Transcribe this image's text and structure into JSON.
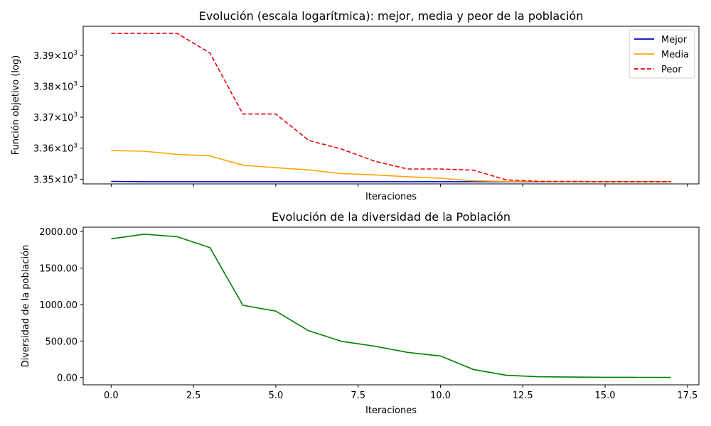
{
  "chart_data": [
    {
      "type": "line",
      "title": "Evolución (escala logarítmica): mejor, media y peor de la población",
      "xlabel": "Iteraciones",
      "ylabel": "Función objetivo (log)",
      "yscale": "log",
      "xlim": [
        -0.85,
        17.85
      ],
      "ylim": [
        3348.5,
        3399.5
      ],
      "grid": false,
      "legend_position": "top-right",
      "x_ticks": [
        0,
        2.5,
        5,
        7.5,
        10,
        12.5,
        15,
        17.5
      ],
      "y_ticks": [
        {
          "value": 3350,
          "mantissa": "3.35",
          "base": "10",
          "exp": "3"
        },
        {
          "value": 3360,
          "mantissa": "3.36",
          "base": "10",
          "exp": "3"
        },
        {
          "value": 3370,
          "mantissa": "3.37",
          "base": "10",
          "exp": "3"
        },
        {
          "value": 3380,
          "mantissa": "3.38",
          "base": "10",
          "exp": "3"
        },
        {
          "value": 3390,
          "mantissa": "3.39",
          "base": "10",
          "exp": "3"
        }
      ],
      "x": [
        0,
        1,
        2,
        3,
        4,
        5,
        6,
        7,
        8,
        9,
        10,
        11,
        12,
        13,
        14,
        15,
        16,
        17
      ],
      "series": [
        {
          "name": "Mejor",
          "color": "#0000cc",
          "style": "solid",
          "values": [
            3349.3,
            3349.2,
            3349.2,
            3349.2,
            3349.2,
            3349.2,
            3349.2,
            3349.2,
            3349.2,
            3349.2,
            3349.2,
            3349.2,
            3349.2,
            3349.2,
            3349.2,
            3349.2,
            3349.2,
            3349.2
          ]
        },
        {
          "name": "Media",
          "color": "#ffa500",
          "style": "solid",
          "values": [
            3359.2,
            3359.0,
            3358.0,
            3357.5,
            3354.5,
            3353.7,
            3353.0,
            3351.8,
            3351.4,
            3350.8,
            3350.3,
            3349.5,
            3349.3,
            3349.3,
            3349.2,
            3349.2,
            3349.2,
            3349.2
          ]
        },
        {
          "name": "Peor",
          "color": "#e8000b",
          "style": "dashed",
          "values": [
            3397.2,
            3397.2,
            3397.2,
            3390.8,
            3371.0,
            3371.0,
            3362.5,
            3359.7,
            3355.8,
            3353.3,
            3353.3,
            3352.9,
            3349.8,
            3349.3,
            3349.3,
            3349.2,
            3349.2,
            3349.2
          ]
        }
      ]
    },
    {
      "type": "line",
      "title": "Evolución de la diversidad de la Población",
      "xlabel": "Iteraciones",
      "ylabel": "Diversidad de la población",
      "xlim": [
        -0.85,
        17.85
      ],
      "ylim": [
        -100,
        2060
      ],
      "grid": false,
      "x_ticks": [
        0,
        2.5,
        5,
        7.5,
        10,
        12.5,
        15,
        17.5
      ],
      "x_tick_labels": [
        "0.0",
        "2.5",
        "5.0",
        "7.5",
        "10.0",
        "12.5",
        "15.0",
        "17.5"
      ],
      "y_ticks": [
        0,
        500,
        1000,
        1500,
        2000
      ],
      "y_tick_labels": [
        "0.00",
        "500.00",
        "1000.00",
        "1500.00",
        "2000.00"
      ],
      "x": [
        0,
        1,
        2,
        3,
        4,
        5,
        6,
        7,
        8,
        9,
        10,
        11,
        12,
        13,
        14,
        15,
        16,
        17
      ],
      "series": [
        {
          "color": "#008000",
          "style": "solid",
          "values": [
            1900,
            1965,
            1930,
            1780,
            990,
            910,
            640,
            495,
            430,
            345,
            295,
            110,
            30,
            10,
            6,
            3,
            2,
            1
          ]
        }
      ]
    }
  ]
}
